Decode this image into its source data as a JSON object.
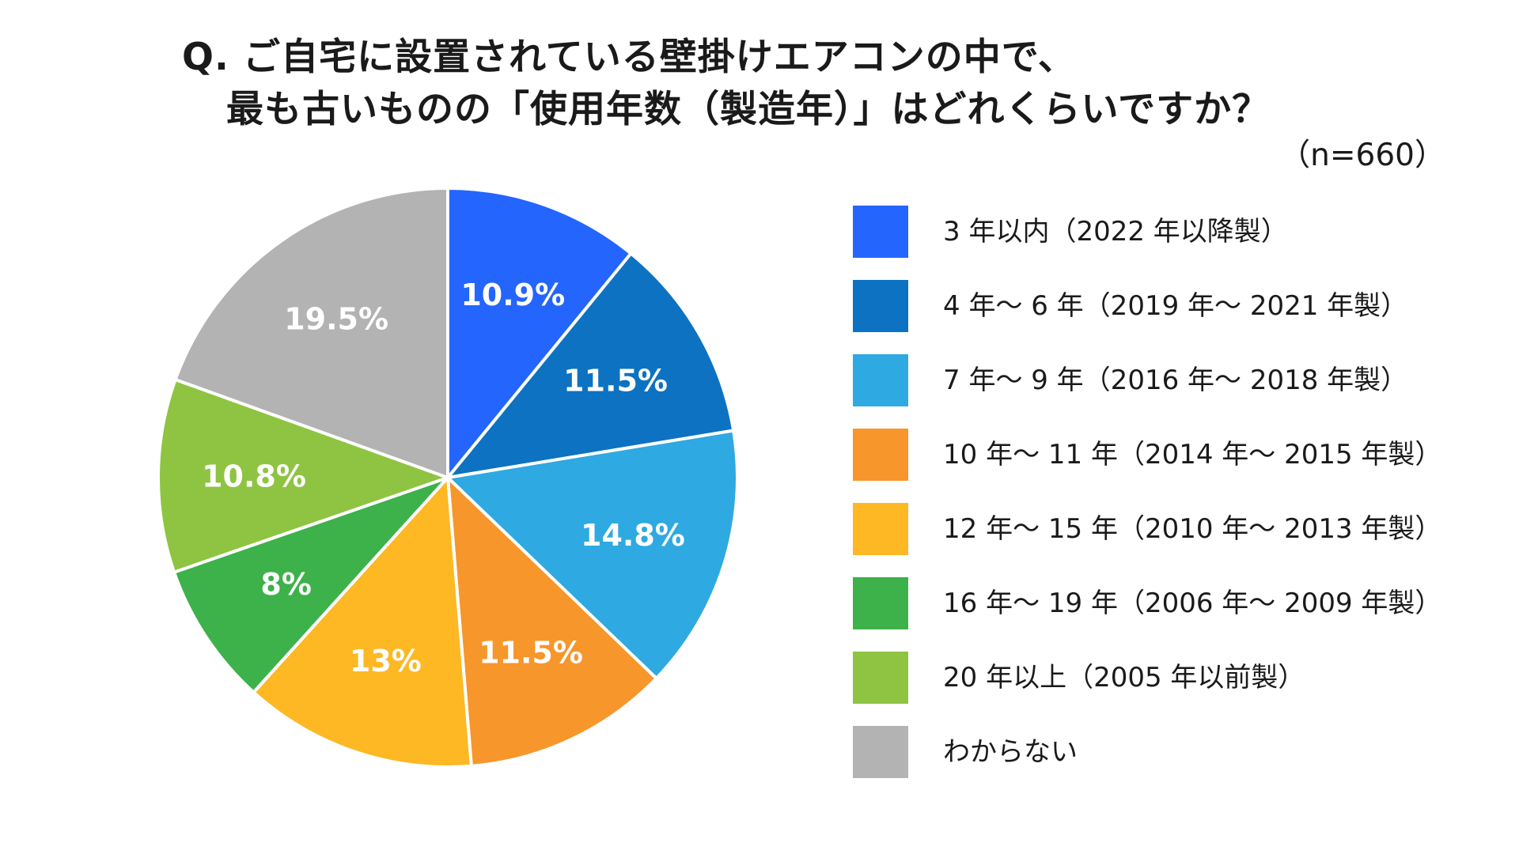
{
  "title": {
    "line1": "Q.  ご自宅に設置されている壁掛けエアコンの中で、",
    "line2": "最も古いものの「使用年数（製造年）」はどれくらいですか？"
  },
  "sample_size": "（n=660）",
  "chart_data": {
    "type": "pie",
    "start": "12 o'clock",
    "direction": "clockwise",
    "legend_position": "right",
    "slices": [
      {
        "label": "3 年以内（2022 年以降製）",
        "value": 10.9,
        "display": "10.9%",
        "color": "#2465fd"
      },
      {
        "label": "4 年～ 6 年（2019 年～ 2021 年製）",
        "value": 11.5,
        "display": "11.5%",
        "color": "#0d72c1"
      },
      {
        "label": "7 年～ 9 年（2016 年～ 2018 年製）",
        "value": 14.8,
        "display": "14.8%",
        "color": "#2fa9e1"
      },
      {
        "label": "10 年～ 11 年（2014 年～ 2015 年製）",
        "value": 11.5,
        "display": "11.5%",
        "color": "#f7962b"
      },
      {
        "label": "12 年～ 15 年（2010 年～ 2013 年製）",
        "value": 13,
        "display": "13%",
        "color": "#fdb824"
      },
      {
        "label": "16 年～ 19 年（2006 年～ 2009 年製）",
        "value": 8,
        "display": "8%",
        "color": "#3db14a"
      },
      {
        "label": "20 年以上（2005 年以前製）",
        "value": 10.8,
        "display": "10.8%",
        "color": "#8ec442"
      },
      {
        "label": "わからない",
        "value": 19.5,
        "display": "19.5%",
        "color": "#b3b3b3"
      }
    ]
  }
}
